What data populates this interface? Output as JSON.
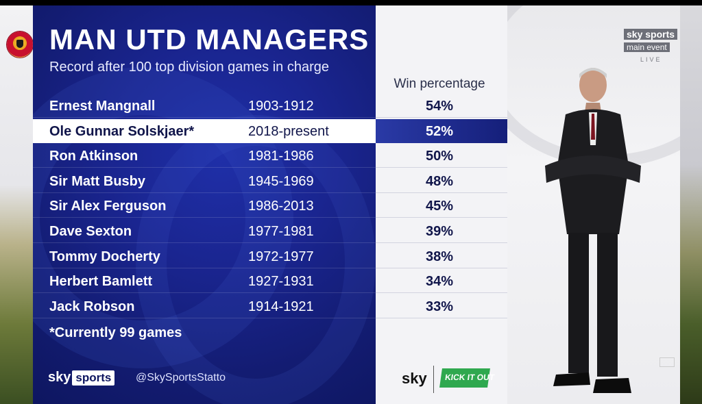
{
  "title": "MAN UTD MANAGERS",
  "subtitle": "Record after 100 top division games in charge",
  "column_header": "Win percentage",
  "rows": [
    {
      "name": "Ernest Mangnall",
      "years": "1903-1912",
      "pct": "54%"
    },
    {
      "name": "Ole Gunnar Solskjaer*",
      "years": "2018-present",
      "pct": "52%",
      "highlight": true
    },
    {
      "name": "Ron Atkinson",
      "years": "1981-1986",
      "pct": "50%"
    },
    {
      "name": "Sir Matt Busby",
      "years": "1945-1969",
      "pct": "48%"
    },
    {
      "name": "Sir Alex Ferguson",
      "years": "1986-2013",
      "pct": "45%"
    },
    {
      "name": "Dave Sexton",
      "years": "1977-1981",
      "pct": "39%"
    },
    {
      "name": "Tommy Docherty",
      "years": "1972-1977",
      "pct": "38%"
    },
    {
      "name": "Herbert Bamlett",
      "years": "1927-1931",
      "pct": "34%"
    },
    {
      "name": "Jack Robson",
      "years": "1914-1921",
      "pct": "33%"
    }
  ],
  "footnote": "*Currently 99 games",
  "footer": {
    "logo_sky": "sky",
    "logo_sports": "sports",
    "handle": "@SkySportsStatto",
    "partner_sky": "sky",
    "partner_kickitout": "KICK IT OUT"
  },
  "channel_bug": {
    "line1": "sky sports",
    "line2": "main event",
    "line3": "LIVE"
  },
  "colors": {
    "panel": "#131c72",
    "highlight_row": "#ffffff",
    "win_column": "#f3f3f6",
    "kickitout": "#2fa84f"
  }
}
